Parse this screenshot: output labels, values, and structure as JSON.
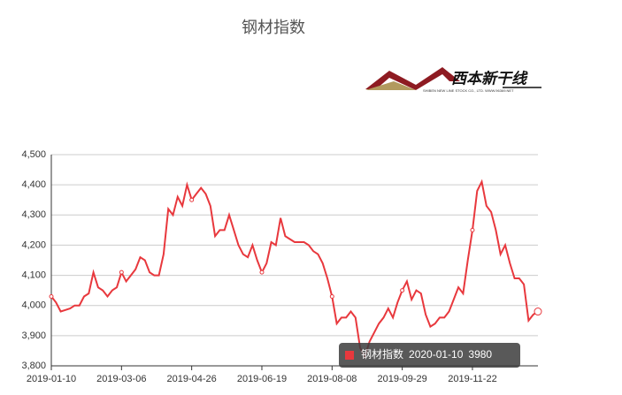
{
  "chart_data": {
    "type": "line",
    "title": "钢材指数",
    "logo": {
      "name": "西本新干线",
      "subtitle": "SHIBEN NEW LINE STOCK CO., LTD.  WWW.96369.NET"
    },
    "categories": [
      "2019-01-10",
      null,
      null,
      null,
      null,
      null,
      null,
      null,
      null,
      null,
      null,
      null,
      null,
      null,
      null,
      "2019-03-06",
      null,
      null,
      null,
      null,
      null,
      null,
      null,
      null,
      null,
      null,
      null,
      null,
      null,
      null,
      "2019-04-26",
      null,
      null,
      null,
      null,
      null,
      null,
      null,
      null,
      null,
      null,
      null,
      null,
      null,
      null,
      "2019-06-19",
      null,
      null,
      null,
      null,
      null,
      null,
      null,
      null,
      null,
      null,
      null,
      null,
      null,
      null,
      "2019-08-08",
      null,
      null,
      null,
      null,
      null,
      null,
      null,
      null,
      null,
      null,
      null,
      null,
      null,
      null,
      "2019-09-29",
      null,
      null,
      null,
      null,
      null,
      null,
      null,
      null,
      null,
      null,
      null,
      null,
      null,
      null,
      "2019-11-22",
      null,
      null,
      null,
      null,
      null,
      null,
      null,
      null,
      null,
      null,
      null,
      null,
      null,
      null
    ],
    "series": [
      {
        "name": "钢材指数",
        "color": "#e8383d",
        "values": [
          4030,
          4010,
          3980,
          3985,
          3990,
          4000,
          4000,
          4030,
          4040,
          4110,
          4060,
          4050,
          4030,
          4050,
          4060,
          4110,
          4080,
          4100,
          4120,
          4160,
          4150,
          4110,
          4100,
          4100,
          4170,
          4320,
          4300,
          4360,
          4330,
          4400,
          4350,
          4370,
          4390,
          4370,
          4330,
          4230,
          4250,
          4250,
          4300,
          4250,
          4200,
          4170,
          4160,
          4200,
          4150,
          4110,
          4140,
          4210,
          4200,
          4290,
          4230,
          4220,
          4210,
          4210,
          4210,
          4200,
          4180,
          4170,
          4140,
          4090,
          4030,
          3940,
          3960,
          3960,
          3980,
          3960,
          3860,
          3830,
          3880,
          3910,
          3940,
          3960,
          3990,
          3960,
          4010,
          4050,
          4080,
          4020,
          4050,
          4040,
          3970,
          3930,
          3940,
          3960,
          3960,
          3980,
          4020,
          4060,
          4040,
          4150,
          4250,
          4380,
          4410,
          4330,
          4310,
          4250,
          4170,
          4200,
          4140,
          4090,
          4090,
          4070,
          3950,
          3970,
          3980
        ]
      }
    ],
    "ylim": [
      3800,
      4500
    ],
    "yticks": [
      {
        "value": 3800,
        "label": "3,800"
      },
      {
        "value": 3900,
        "label": "3,900"
      },
      {
        "value": 4000,
        "label": "4,000"
      },
      {
        "value": 4100,
        "label": "4,100"
      },
      {
        "value": 4200,
        "label": "4,200"
      },
      {
        "value": 4300,
        "label": "4,300"
      },
      {
        "value": 4400,
        "label": "4,400"
      },
      {
        "value": 4500,
        "label": "4,500"
      }
    ],
    "grid": true,
    "tooltip": {
      "name": "钢材指数",
      "date": "2020-01-10",
      "value": 3980
    }
  }
}
